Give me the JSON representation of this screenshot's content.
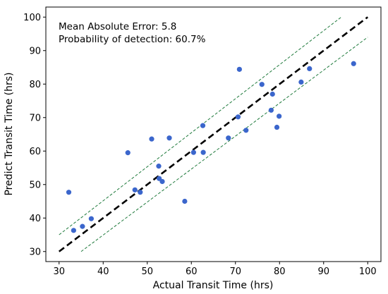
{
  "chart_data": {
    "type": "scatter",
    "xlabel": "Actual Transit Time (hrs)",
    "ylabel": "Predict Transit Time (hrs)",
    "xlim": [
      27,
      103
    ],
    "ylim": [
      27,
      103
    ],
    "xticks": [
      30,
      40,
      50,
      60,
      70,
      80,
      90,
      100
    ],
    "yticks": [
      30,
      40,
      50,
      60,
      70,
      80,
      90,
      100
    ],
    "grid": false,
    "annotations": [
      "Mean Absolute Error: 5.8",
      "Probability of detection: 60.7%"
    ],
    "points": [
      {
        "x": 32.2,
        "y": 47.7
      },
      {
        "x": 33.3,
        "y": 36.3
      },
      {
        "x": 35.3,
        "y": 37.5
      },
      {
        "x": 37.3,
        "y": 39.8
      },
      {
        "x": 45.6,
        "y": 59.5
      },
      {
        "x": 47.2,
        "y": 48.4
      },
      {
        "x": 48.4,
        "y": 47.7
      },
      {
        "x": 51.0,
        "y": 63.6
      },
      {
        "x": 52.6,
        "y": 55.5
      },
      {
        "x": 52.7,
        "y": 51.8
      },
      {
        "x": 53.4,
        "y": 50.9
      },
      {
        "x": 55.0,
        "y": 63.9
      },
      {
        "x": 58.5,
        "y": 45.0
      },
      {
        "x": 60.5,
        "y": 59.6
      },
      {
        "x": 62.6,
        "y": 67.6
      },
      {
        "x": 62.7,
        "y": 59.6
      },
      {
        "x": 68.4,
        "y": 63.9
      },
      {
        "x": 70.6,
        "y": 70.2
      },
      {
        "x": 70.9,
        "y": 84.4
      },
      {
        "x": 72.4,
        "y": 66.2
      },
      {
        "x": 76.0,
        "y": 79.9
      },
      {
        "x": 78.1,
        "y": 72.2
      },
      {
        "x": 78.4,
        "y": 77.0
      },
      {
        "x": 79.4,
        "y": 67.1
      },
      {
        "x": 79.9,
        "y": 70.4
      },
      {
        "x": 84.9,
        "y": 80.6
      },
      {
        "x": 86.8,
        "y": 84.6
      },
      {
        "x": 96.8,
        "y": 86.1
      }
    ],
    "reference_lines": [
      {
        "role": "identity",
        "x": [
          30,
          100
        ],
        "y": [
          30,
          100
        ],
        "style": "dashed",
        "color": "#000000"
      },
      {
        "role": "upper-band",
        "x": [
          30,
          94
        ],
        "y": [
          35,
          100
        ],
        "style": "dashed",
        "color": "#1f7a3c"
      },
      {
        "role": "lower-band",
        "x": [
          35,
          100
        ],
        "y": [
          30,
          94
        ],
        "style": "dashed",
        "color": "#1f7a3c"
      }
    ],
    "colors": {
      "points": "#3b66cc",
      "identity": "#000000",
      "band": "#1f7a3c"
    }
  }
}
